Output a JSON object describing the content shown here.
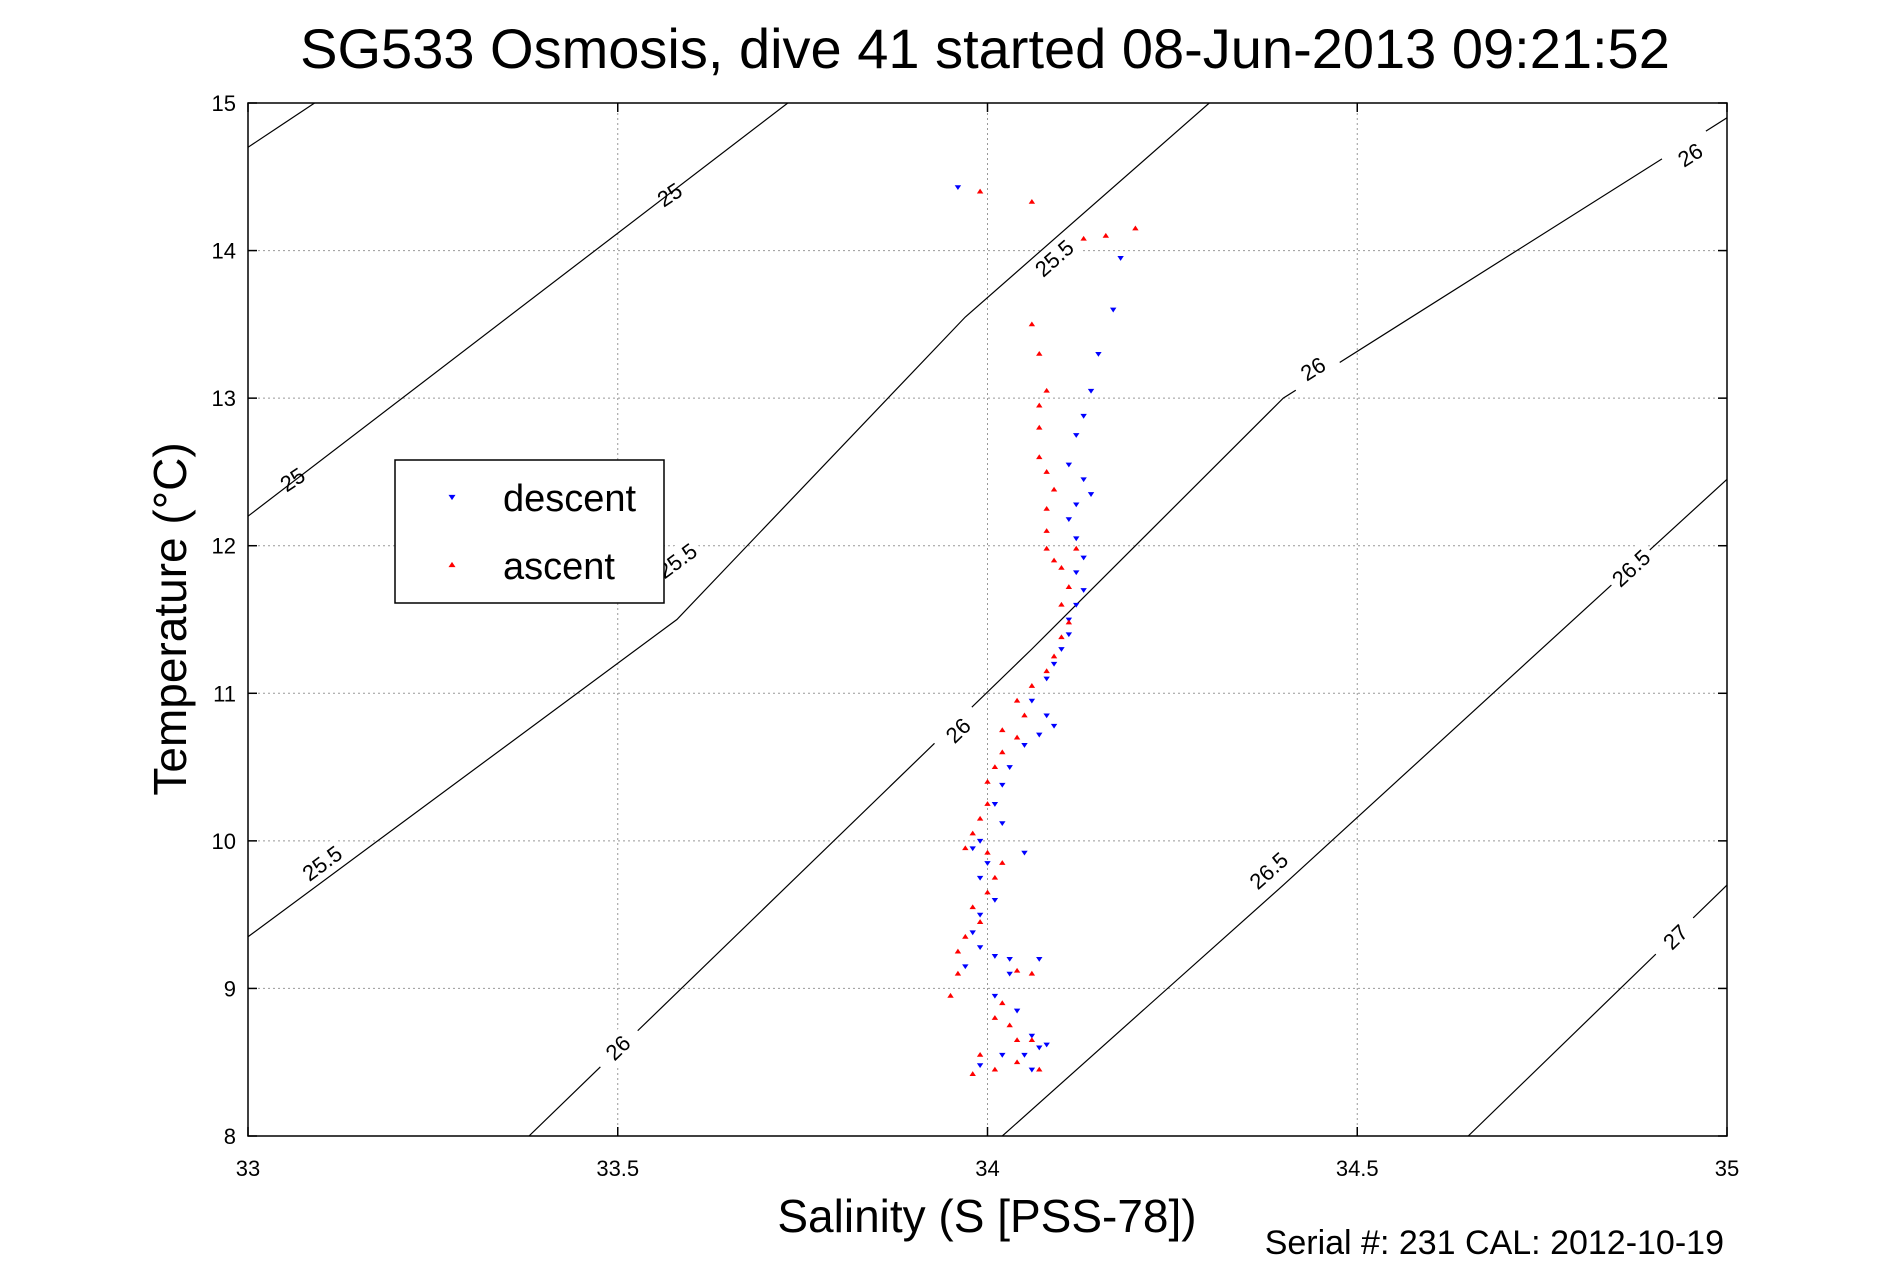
{
  "chart_data": {
    "type": "scatter",
    "title": "SG533 Osmosis, dive 41 started 08-Jun-2013 09:21:52",
    "xlabel": "Salinity (S [PSS-78])",
    "ylabel": "Temperature (°C)",
    "footer": "Serial #: 231  CAL: 2012-10-19",
    "xlim": [
      33,
      35
    ],
    "ylim": [
      8,
      15
    ],
    "xticks": [
      33,
      33.5,
      34,
      34.5,
      35
    ],
    "xtick_labels": [
      "33",
      "33.5",
      "34",
      "34.5",
      "35"
    ],
    "yticks": [
      8,
      9,
      10,
      11,
      12,
      13,
      14,
      15
    ],
    "ytick_labels": [
      "8",
      "9",
      "10",
      "11",
      "12",
      "13",
      "14",
      "15"
    ],
    "grid": true,
    "legend_position": "left",
    "density_contours": [
      {
        "sigma": 25,
        "label": "25",
        "points": [
          [
            33,
            14.7
          ],
          [
            33.09,
            15
          ]
        ],
        "labels_at": [
          [
            33.57,
            14.38
          ],
          [
            33.06,
            12.45
          ]
        ]
      },
      {
        "sigma": 25,
        "label": "25",
        "points": [
          [
            33,
            12.2
          ],
          [
            33.73,
            15
          ]
        ]
      },
      {
        "sigma": 25.5,
        "label": "25.5",
        "points": [
          [
            33,
            9.35
          ],
          [
            33.58,
            11.5
          ],
          [
            33.97,
            13.55
          ],
          [
            34.3,
            15
          ]
        ],
        "labels_at": [
          [
            34.09,
            13.95
          ],
          [
            33.58,
            11.9
          ],
          [
            33.1,
            9.85
          ]
        ]
      },
      {
        "sigma": 26,
        "label": "26",
        "points": [
          [
            33.38,
            8
          ],
          [
            34.06,
            11.3
          ],
          [
            34.4,
            13
          ],
          [
            35,
            14.9
          ]
        ],
        "labels_at": [
          [
            34.95,
            14.65
          ],
          [
            34.44,
            13.2
          ],
          [
            33.96,
            10.75
          ],
          [
            33.5,
            8.6
          ]
        ]
      },
      {
        "sigma": 26.5,
        "label": "26.5",
        "points": [
          [
            34.02,
            8
          ],
          [
            34.4,
            9.7
          ],
          [
            35,
            12.45
          ]
        ],
        "labels_at": [
          [
            34.87,
            11.85
          ],
          [
            34.38,
            9.8
          ]
        ]
      },
      {
        "sigma": 27,
        "label": "27",
        "points": [
          [
            34.65,
            8
          ],
          [
            35,
            9.7
          ]
        ],
        "labels_at": [
          [
            34.93,
            9.35
          ]
        ]
      }
    ],
    "series": [
      {
        "name": "descent",
        "marker": "down-triangle",
        "color": "#0000ff",
        "points": [
          [
            33.96,
            14.43
          ],
          [
            34.18,
            13.95
          ],
          [
            34.17,
            13.6
          ],
          [
            34.15,
            13.3
          ],
          [
            34.14,
            13.05
          ],
          [
            34.13,
            12.88
          ],
          [
            34.12,
            12.75
          ],
          [
            34.11,
            12.55
          ],
          [
            34.13,
            12.45
          ],
          [
            34.14,
            12.35
          ],
          [
            34.12,
            12.28
          ],
          [
            34.11,
            12.18
          ],
          [
            34.12,
            12.05
          ],
          [
            34.13,
            11.92
          ],
          [
            34.12,
            11.82
          ],
          [
            34.13,
            11.7
          ],
          [
            34.12,
            11.6
          ],
          [
            34.11,
            11.5
          ],
          [
            34.11,
            11.4
          ],
          [
            34.1,
            11.3
          ],
          [
            34.09,
            11.2
          ],
          [
            34.08,
            11.1
          ],
          [
            34.06,
            10.95
          ],
          [
            34.08,
            10.85
          ],
          [
            34.09,
            10.78
          ],
          [
            34.07,
            10.72
          ],
          [
            34.05,
            10.65
          ],
          [
            34.03,
            10.5
          ],
          [
            34.02,
            10.38
          ],
          [
            34.01,
            10.25
          ],
          [
            34.02,
            10.12
          ],
          [
            33.99,
            10.0
          ],
          [
            33.98,
            9.95
          ],
          [
            34.05,
            9.92
          ],
          [
            34.0,
            9.85
          ],
          [
            33.99,
            9.75
          ],
          [
            34.01,
            9.6
          ],
          [
            33.99,
            9.5
          ],
          [
            33.98,
            9.38
          ],
          [
            33.99,
            9.28
          ],
          [
            34.01,
            9.22
          ],
          [
            34.03,
            9.2
          ],
          [
            34.07,
            9.2
          ],
          [
            33.97,
            9.15
          ],
          [
            34.03,
            9.1
          ],
          [
            34.01,
            8.95
          ],
          [
            34.04,
            8.85
          ],
          [
            34.06,
            8.68
          ],
          [
            34.07,
            8.6
          ],
          [
            34.02,
            8.55
          ],
          [
            33.99,
            8.48
          ],
          [
            34.06,
            8.45
          ],
          [
            34.05,
            8.55
          ],
          [
            34.08,
            8.62
          ]
        ]
      },
      {
        "name": "ascent",
        "marker": "up-triangle",
        "color": "#ff0000",
        "points": [
          [
            33.99,
            14.4
          ],
          [
            34.06,
            14.33
          ],
          [
            34.13,
            14.08
          ],
          [
            34.2,
            14.15
          ],
          [
            34.16,
            14.1
          ],
          [
            34.06,
            13.5
          ],
          [
            34.07,
            13.3
          ],
          [
            34.08,
            13.05
          ],
          [
            34.07,
            12.95
          ],
          [
            34.07,
            12.8
          ],
          [
            34.07,
            12.6
          ],
          [
            34.08,
            12.5
          ],
          [
            34.09,
            12.38
          ],
          [
            34.08,
            12.25
          ],
          [
            34.08,
            12.1
          ],
          [
            34.08,
            11.98
          ],
          [
            34.09,
            11.9
          ],
          [
            34.1,
            11.85
          ],
          [
            34.12,
            11.98
          ],
          [
            34.11,
            11.72
          ],
          [
            34.1,
            11.6
          ],
          [
            34.11,
            11.48
          ],
          [
            34.1,
            11.38
          ],
          [
            34.09,
            11.25
          ],
          [
            34.08,
            11.15
          ],
          [
            34.06,
            11.05
          ],
          [
            34.04,
            10.95
          ],
          [
            34.05,
            10.85
          ],
          [
            34.02,
            10.75
          ],
          [
            34.04,
            10.7
          ],
          [
            34.02,
            10.6
          ],
          [
            34.01,
            10.5
          ],
          [
            34.0,
            10.4
          ],
          [
            34.0,
            10.25
          ],
          [
            33.99,
            10.15
          ],
          [
            33.98,
            10.05
          ],
          [
            33.97,
            9.95
          ],
          [
            34.0,
            9.92
          ],
          [
            34.02,
            9.85
          ],
          [
            34.01,
            9.75
          ],
          [
            34.0,
            9.65
          ],
          [
            33.98,
            9.55
          ],
          [
            33.99,
            9.45
          ],
          [
            33.97,
            9.35
          ],
          [
            33.96,
            9.25
          ],
          [
            33.96,
            9.1
          ],
          [
            34.04,
            9.12
          ],
          [
            34.06,
            9.1
          ],
          [
            33.95,
            8.95
          ],
          [
            34.02,
            8.9
          ],
          [
            34.01,
            8.8
          ],
          [
            34.03,
            8.75
          ],
          [
            34.04,
            8.65
          ],
          [
            33.99,
            8.55
          ],
          [
            33.98,
            8.42
          ],
          [
            34.01,
            8.45
          ],
          [
            34.04,
            8.5
          ],
          [
            34.06,
            8.65
          ],
          [
            34.07,
            8.45
          ]
        ]
      }
    ]
  }
}
